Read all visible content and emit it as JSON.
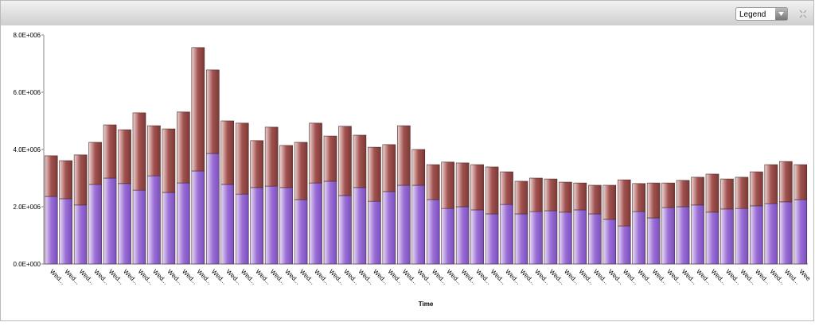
{
  "legend_control": "Legend",
  "chart_data": {
    "type": "stacked_bar",
    "xlabel": "Time",
    "categories": [
      "Wed...",
      "Wed...",
      "Wed...",
      "Wed...",
      "Wed...",
      "Wed...",
      "Wed...",
      "Wed...",
      "Wed...",
      "Wed...",
      "Wed...",
      "Wed...",
      "Wed...",
      "Wed...",
      "Wed...",
      "Wed...",
      "Wed...",
      "Wed...",
      "Wed...",
      "Wed...",
      "Wed...",
      "Wed...",
      "Wed...",
      "Wed...",
      "Wed...",
      "Wed...",
      "Wed...",
      "Wed...",
      "Wed...",
      "Wed...",
      "Wed...",
      "Wed...",
      "Wed...",
      "Wed...",
      "Wed...",
      "Wed...",
      "Wed...",
      "Wed...",
      "Wed...",
      "Wed...",
      "Wed...",
      "Wed...",
      "Wed...",
      "Wed...",
      "Wed...",
      "Wed...",
      "Wed...",
      "Wed...",
      "Wed...",
      "Wed...",
      "Wed...",
      "Wee"
    ],
    "series": [
      {
        "color": "#9b6fd6",
        "values": [
          2360000,
          2280000,
          2060000,
          2780000,
          3000000,
          2810000,
          2580000,
          3080000,
          2500000,
          2830000,
          3250000,
          3860000,
          2780000,
          2440000,
          2670000,
          2720000,
          2670000,
          2250000,
          2830000,
          2890000,
          2390000,
          2670000,
          2190000,
          2530000,
          2750000,
          2750000,
          2250000,
          1940000,
          2000000,
          1890000,
          1750000,
          2080000,
          1750000,
          1830000,
          1860000,
          1810000,
          1890000,
          1750000,
          1560000,
          1330000,
          1830000,
          1610000,
          1970000,
          2000000,
          2060000,
          1810000,
          1920000,
          1940000,
          2030000,
          2110000,
          2170000,
          2250000
        ]
      },
      {
        "color": "#a0524f",
        "values": [
          1420000,
          1330000,
          1750000,
          1470000,
          1860000,
          1880000,
          2700000,
          1750000,
          2220000,
          2480000,
          4310000,
          2920000,
          2220000,
          2480000,
          1640000,
          2060000,
          1470000,
          2000000,
          2090000,
          1580000,
          2420000,
          1830000,
          1890000,
          1640000,
          2080000,
          1250000,
          1220000,
          1620000,
          1530000,
          1580000,
          1640000,
          1140000,
          1140000,
          1170000,
          1110000,
          1050000,
          940000,
          1000000,
          1190000,
          1610000,
          980000,
          1220000,
          860000,
          920000,
          970000,
          1330000,
          1050000,
          1090000,
          1190000,
          1360000,
          1410000,
          1220000
        ]
      }
    ],
    "ylim": [
      0,
      8000000
    ],
    "yticks": [
      {
        "value": 0,
        "label": "0.0E+000"
      },
      {
        "value": 2000000,
        "label": "2.0E+006"
      },
      {
        "value": 4000000,
        "label": "4.0E+006"
      },
      {
        "value": 6000000,
        "label": "6.0E+006"
      },
      {
        "value": 8000000,
        "label": "8.0E+006"
      }
    ]
  }
}
